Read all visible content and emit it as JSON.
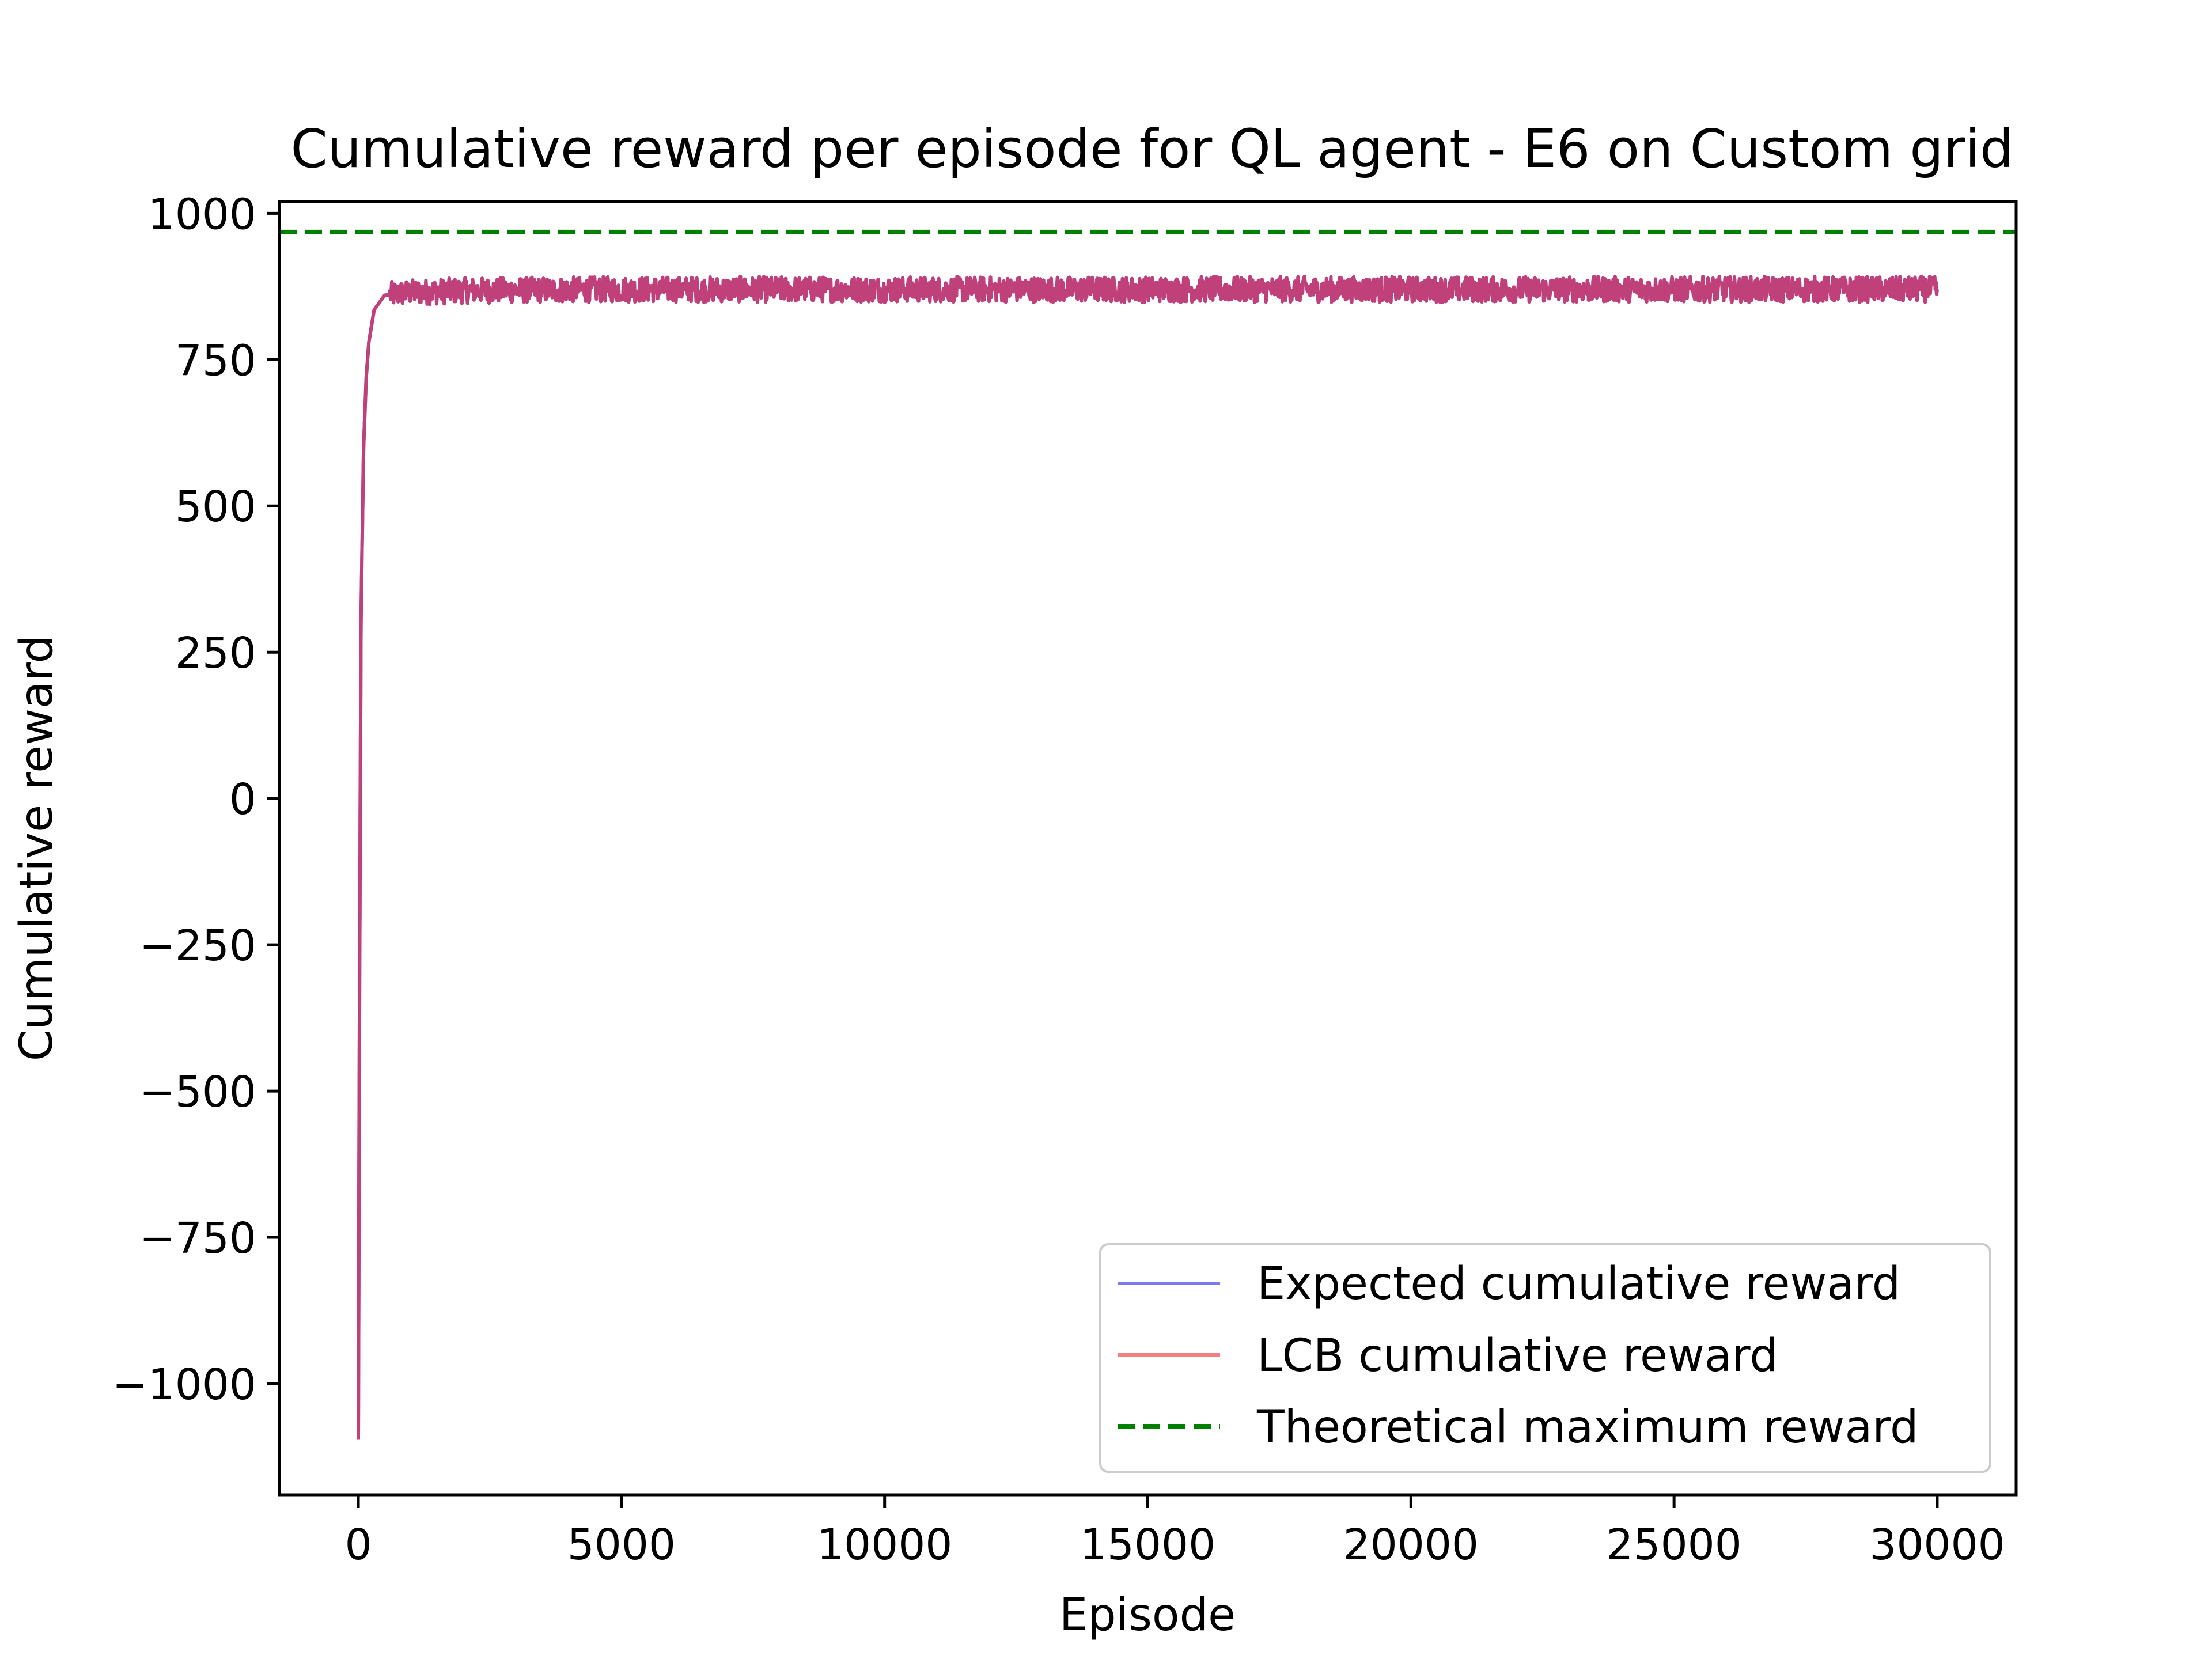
{
  "chart_data": {
    "type": "line",
    "title": "Cumulative reward per episode for QL agent - E6 on Custom grid",
    "xlabel": "Episode",
    "ylabel": "Cumulative reward",
    "xlim": [
      -1500,
      31500
    ],
    "ylim": [
      -1190,
      1020
    ],
    "xticks": [
      0,
      5000,
      10000,
      15000,
      20000,
      25000,
      30000
    ],
    "xtick_labels": [
      "0",
      "5000",
      "10000",
      "15000",
      "20000",
      "25000",
      "30000"
    ],
    "yticks": [
      -1000,
      -750,
      -500,
      -250,
      0,
      250,
      500,
      750,
      1000
    ],
    "ytick_labels": [
      "−1000",
      "−750",
      "−500",
      "−250",
      "0",
      "250",
      "500",
      "750",
      "1000"
    ],
    "grid": false,
    "legend_position": "lower-right",
    "series": [
      {
        "name": "Expected cumulative reward",
        "color": "#7b7bf0",
        "style": "solid",
        "x": [
          0,
          20,
          50,
          100,
          150,
          200,
          300,
          500,
          1000,
          2000,
          5000,
          10000,
          15000,
          20000,
          25000,
          30000
        ],
        "y": [
          -1095,
          -400,
          300,
          600,
          720,
          780,
          835,
          860,
          865,
          868,
          870,
          870,
          870,
          870,
          870,
          870
        ],
        "noise": 22
      },
      {
        "name": "LCB cumulative reward",
        "color": "#f08080",
        "style": "solid",
        "x": [
          0,
          20,
          50,
          100,
          150,
          200,
          300,
          500,
          1000,
          2000,
          5000,
          10000,
          15000,
          20000,
          25000,
          30000
        ],
        "y": [
          -1095,
          -400,
          300,
          600,
          720,
          780,
          835,
          860,
          865,
          868,
          870,
          870,
          870,
          870,
          870,
          870
        ],
        "noise": 22
      },
      {
        "name": "Theoretical maximum reward",
        "color": "#008000",
        "style": "dashed",
        "y_constant": 968
      }
    ],
    "overlap_color": "#c0407a"
  }
}
